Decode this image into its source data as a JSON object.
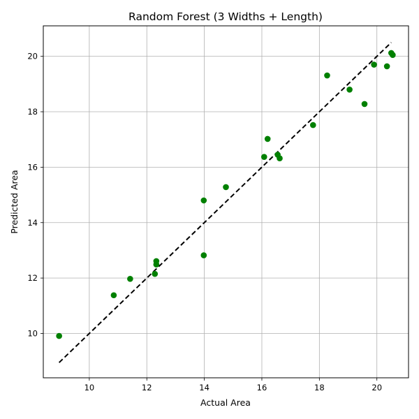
{
  "chart_data": {
    "type": "scatter",
    "title": "Random Forest (3 Widths + Length)",
    "xlabel": "Actual Area",
    "ylabel": "Predicted Area",
    "xlim": [
      8.4,
      21.1
    ],
    "ylim": [
      8.4,
      21.1
    ],
    "xticks": [
      10,
      12,
      14,
      16,
      18,
      20
    ],
    "yticks": [
      10,
      12,
      14,
      16,
      18,
      20
    ],
    "grid": true,
    "point_color": "#008000",
    "reference_line": {
      "style": "dashed",
      "color": "#000000",
      "from": [
        8.95,
        8.95
      ],
      "to": [
        20.5,
        20.5
      ]
    },
    "points": [
      {
        "x": 8.95,
        "y": 9.91
      },
      {
        "x": 10.85,
        "y": 11.38
      },
      {
        "x": 11.42,
        "y": 11.97
      },
      {
        "x": 12.28,
        "y": 12.15
      },
      {
        "x": 12.33,
        "y": 12.49
      },
      {
        "x": 12.33,
        "y": 12.61
      },
      {
        "x": 13.98,
        "y": 12.82
      },
      {
        "x": 13.98,
        "y": 14.8
      },
      {
        "x": 14.75,
        "y": 15.28
      },
      {
        "x": 16.08,
        "y": 16.37
      },
      {
        "x": 16.2,
        "y": 17.02
      },
      {
        "x": 16.55,
        "y": 16.45
      },
      {
        "x": 16.62,
        "y": 16.32
      },
      {
        "x": 17.78,
        "y": 17.52
      },
      {
        "x": 18.27,
        "y": 19.31
      },
      {
        "x": 19.05,
        "y": 18.8
      },
      {
        "x": 19.57,
        "y": 18.28
      },
      {
        "x": 19.9,
        "y": 19.7
      },
      {
        "x": 20.35,
        "y": 19.64
      },
      {
        "x": 20.5,
        "y": 20.12
      },
      {
        "x": 20.55,
        "y": 20.05
      }
    ]
  }
}
